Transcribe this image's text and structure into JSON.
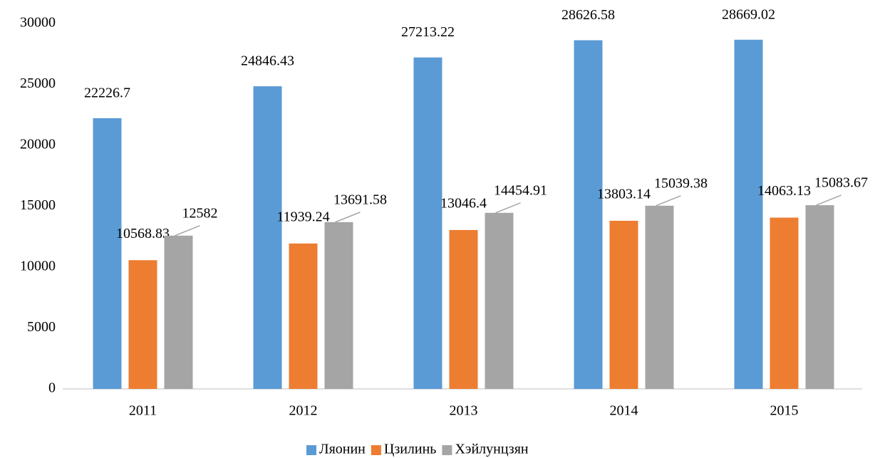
{
  "chart_data": {
    "type": "bar",
    "categories": [
      "2011",
      "2012",
      "2013",
      "2014",
      "2015"
    ],
    "series": [
      {
        "name": "Ляонин",
        "color": "#5b9bd5",
        "values": [
          22226.7,
          24846.43,
          27213.22,
          28626.58,
          28669.02
        ]
      },
      {
        "name": "Цзилинь",
        "color": "#ed7d31",
        "values": [
          10568.83,
          11939.24,
          13046.4,
          13803.14,
          14063.13
        ]
      },
      {
        "name": "Хэйлунцзян",
        "color": "#a5a5a5",
        "values": [
          12582,
          13691.58,
          14454.91,
          15039.38,
          15083.67
        ]
      }
    ],
    "ylim": [
      0,
      30000
    ],
    "yticks": [
      0,
      5000,
      10000,
      15000,
      20000,
      25000,
      30000
    ],
    "grid": false,
    "legend": "bottom"
  }
}
